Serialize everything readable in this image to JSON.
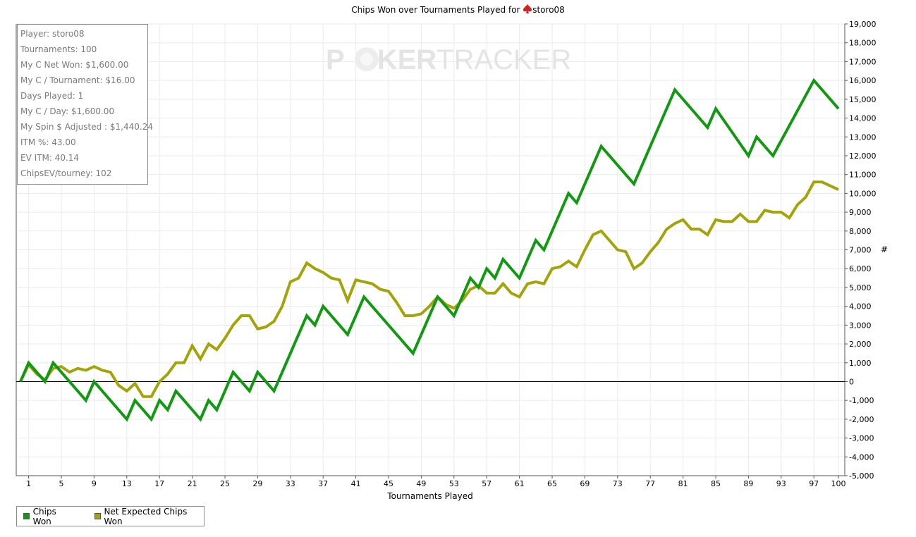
{
  "title_prefix": "Chips Won over Tournaments Played for ",
  "player_name": "storo08",
  "stats": [
    "Player: storo08",
    "Tournaments: 100",
    "My C Net Won: $1,600.00",
    "My C / Tournament: $16.00",
    "Days Played: 1",
    "My C / Day: $1,600.00",
    "My Spin $ Adjusted : $1,440.24",
    "ITM %: 43.00",
    "EV ITM: 40.14",
    "ChipsEV/tourney: 102"
  ],
  "watermark": {
    "left": "P",
    "mid": "KER",
    "right": "TRACKER"
  },
  "colors": {
    "chips_won": "#119a11",
    "net_expected": "#a3a30a",
    "grid": "#ebebeb",
    "watermark": "#e6e6e6"
  },
  "chart_data": {
    "type": "line",
    "xlabel": "Tournaments Played",
    "ylabel": "#",
    "xlim": [
      0,
      100
    ],
    "ylim": [
      -5000,
      19000
    ],
    "y_ticks": [
      "-5,000",
      "-4,000",
      "-3,000",
      "-2,000",
      "-1,000",
      "0",
      "1,000",
      "2,000",
      "3,000",
      "4,000",
      "5,000",
      "6,000",
      "7,000",
      "8,000",
      "9,000",
      "10,000",
      "11,000",
      "12,000",
      "13,000",
      "14,000",
      "15,000",
      "16,000",
      "17,000",
      "18,000",
      "19,000"
    ],
    "x_ticks": [
      "1",
      "5",
      "9",
      "13",
      "17",
      "21",
      "25",
      "29",
      "33",
      "37",
      "41",
      "45",
      "49",
      "53",
      "57",
      "61",
      "65",
      "69",
      "73",
      "77",
      "81",
      "85",
      "89",
      "93",
      "97",
      "100"
    ],
    "series": [
      {
        "name": "Chips Won",
        "x": [
          0,
          1,
          3,
          4,
          8,
          9,
          13,
          14,
          16,
          17,
          18,
          19,
          22,
          23,
          24,
          26,
          28,
          29,
          31,
          35,
          36,
          37,
          40,
          42,
          48,
          51,
          53,
          55,
          56,
          57,
          58,
          59,
          61,
          63,
          64,
          67,
          68,
          71,
          75,
          80,
          84,
          85,
          89,
          90,
          92,
          97,
          100
        ],
        "y": [
          0,
          1000,
          0,
          1000,
          -1000,
          0,
          -2000,
          -1000,
          -2000,
          -1000,
          -1500,
          -500,
          -2000,
          -1000,
          -1500,
          500,
          -500,
          500,
          -500,
          3500,
          3000,
          4000,
          2500,
          4500,
          1500,
          4500,
          3500,
          5500,
          5000,
          6000,
          5500,
          6500,
          5500,
          7500,
          7000,
          10000,
          9500,
          12500,
          10500,
          15500,
          13500,
          14500,
          12000,
          13000,
          12000,
          16000,
          14500
        ]
      },
      {
        "name": "Net Expected Chips Won",
        "x": [
          0,
          1,
          2,
          3,
          4,
          5,
          6,
          7,
          8,
          9,
          10,
          11,
          12,
          13,
          14,
          15,
          16,
          17,
          18,
          19,
          20,
          21,
          22,
          23,
          24,
          25,
          26,
          27,
          28,
          29,
          30,
          31,
          32,
          33,
          34,
          35,
          36,
          37,
          38,
          39,
          40,
          41,
          42,
          43,
          44,
          45,
          46,
          47,
          48,
          49,
          50,
          51,
          52,
          53,
          54,
          55,
          56,
          57,
          58,
          59,
          60,
          61,
          62,
          63,
          64,
          65,
          66,
          67,
          68,
          69,
          70,
          71,
          72,
          73,
          74,
          75,
          76,
          77,
          78,
          79,
          80,
          81,
          82,
          83,
          84,
          85,
          86,
          87,
          88,
          89,
          90,
          91,
          92,
          93,
          94,
          95,
          96,
          97,
          98,
          99,
          100
        ],
        "y": [
          0,
          900,
          400,
          100,
          700,
          800,
          500,
          700,
          600,
          800,
          600,
          500,
          -200,
          -500,
          -100,
          -800,
          -800,
          0,
          400,
          1000,
          1000,
          1900,
          1200,
          2000,
          1700,
          2300,
          3000,
          3500,
          3500,
          2800,
          2900,
          3200,
          4000,
          5300,
          5500,
          6300,
          6000,
          5800,
          5500,
          5400,
          4300,
          5400,
          5300,
          5200,
          4900,
          4800,
          4200,
          3500,
          3500,
          3600,
          4000,
          4500,
          4100,
          3900,
          4300,
          4900,
          5100,
          4700,
          4700,
          5200,
          4700,
          4500,
          5200,
          5300,
          5200,
          6000,
          6100,
          6400,
          6100,
          7000,
          7800,
          8000,
          7500,
          7000,
          6900,
          6000,
          6300,
          6900,
          7400,
          8100,
          8400,
          8600,
          8100,
          8100,
          7800,
          8600,
          8500,
          8500,
          8900,
          8500,
          8500,
          9100,
          9000,
          9000,
          8700,
          9400,
          9800,
          10600,
          10600,
          10400,
          10200
        ]
      }
    ]
  }
}
